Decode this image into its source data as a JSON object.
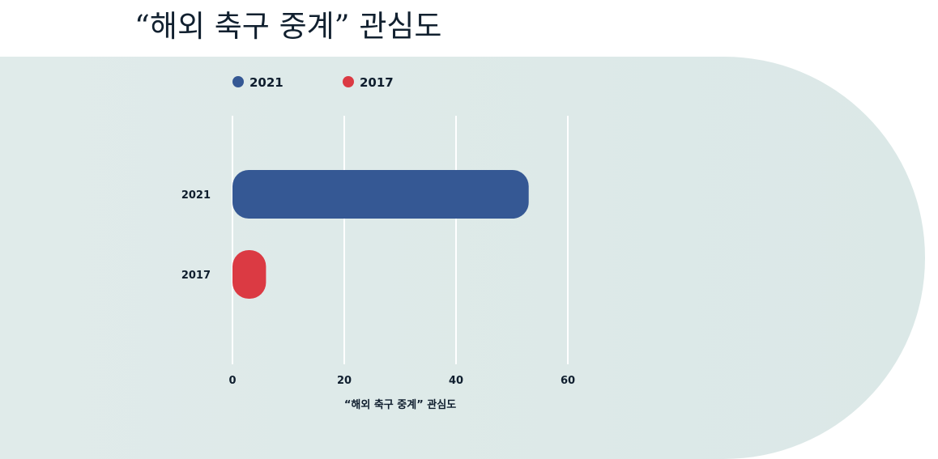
{
  "chart_data": {
    "type": "bar",
    "orientation": "horizontal",
    "title": "“해외 축구 중계” 관심도",
    "xlabel": "“해외 축구 중계” 관심도",
    "ylabel": "",
    "categories": [
      "2021",
      "2017"
    ],
    "values": [
      53,
      6
    ],
    "colors": [
      "#355894",
      "#db3a43"
    ],
    "xlim": [
      0,
      60
    ],
    "xticks": [
      0,
      20,
      40,
      60
    ],
    "grid": true,
    "legend": {
      "placement": "top-left",
      "entries": [
        {
          "name": "2021",
          "color": "#355894"
        },
        {
          "name": "2017",
          "color": "#db3a43"
        }
      ]
    }
  }
}
